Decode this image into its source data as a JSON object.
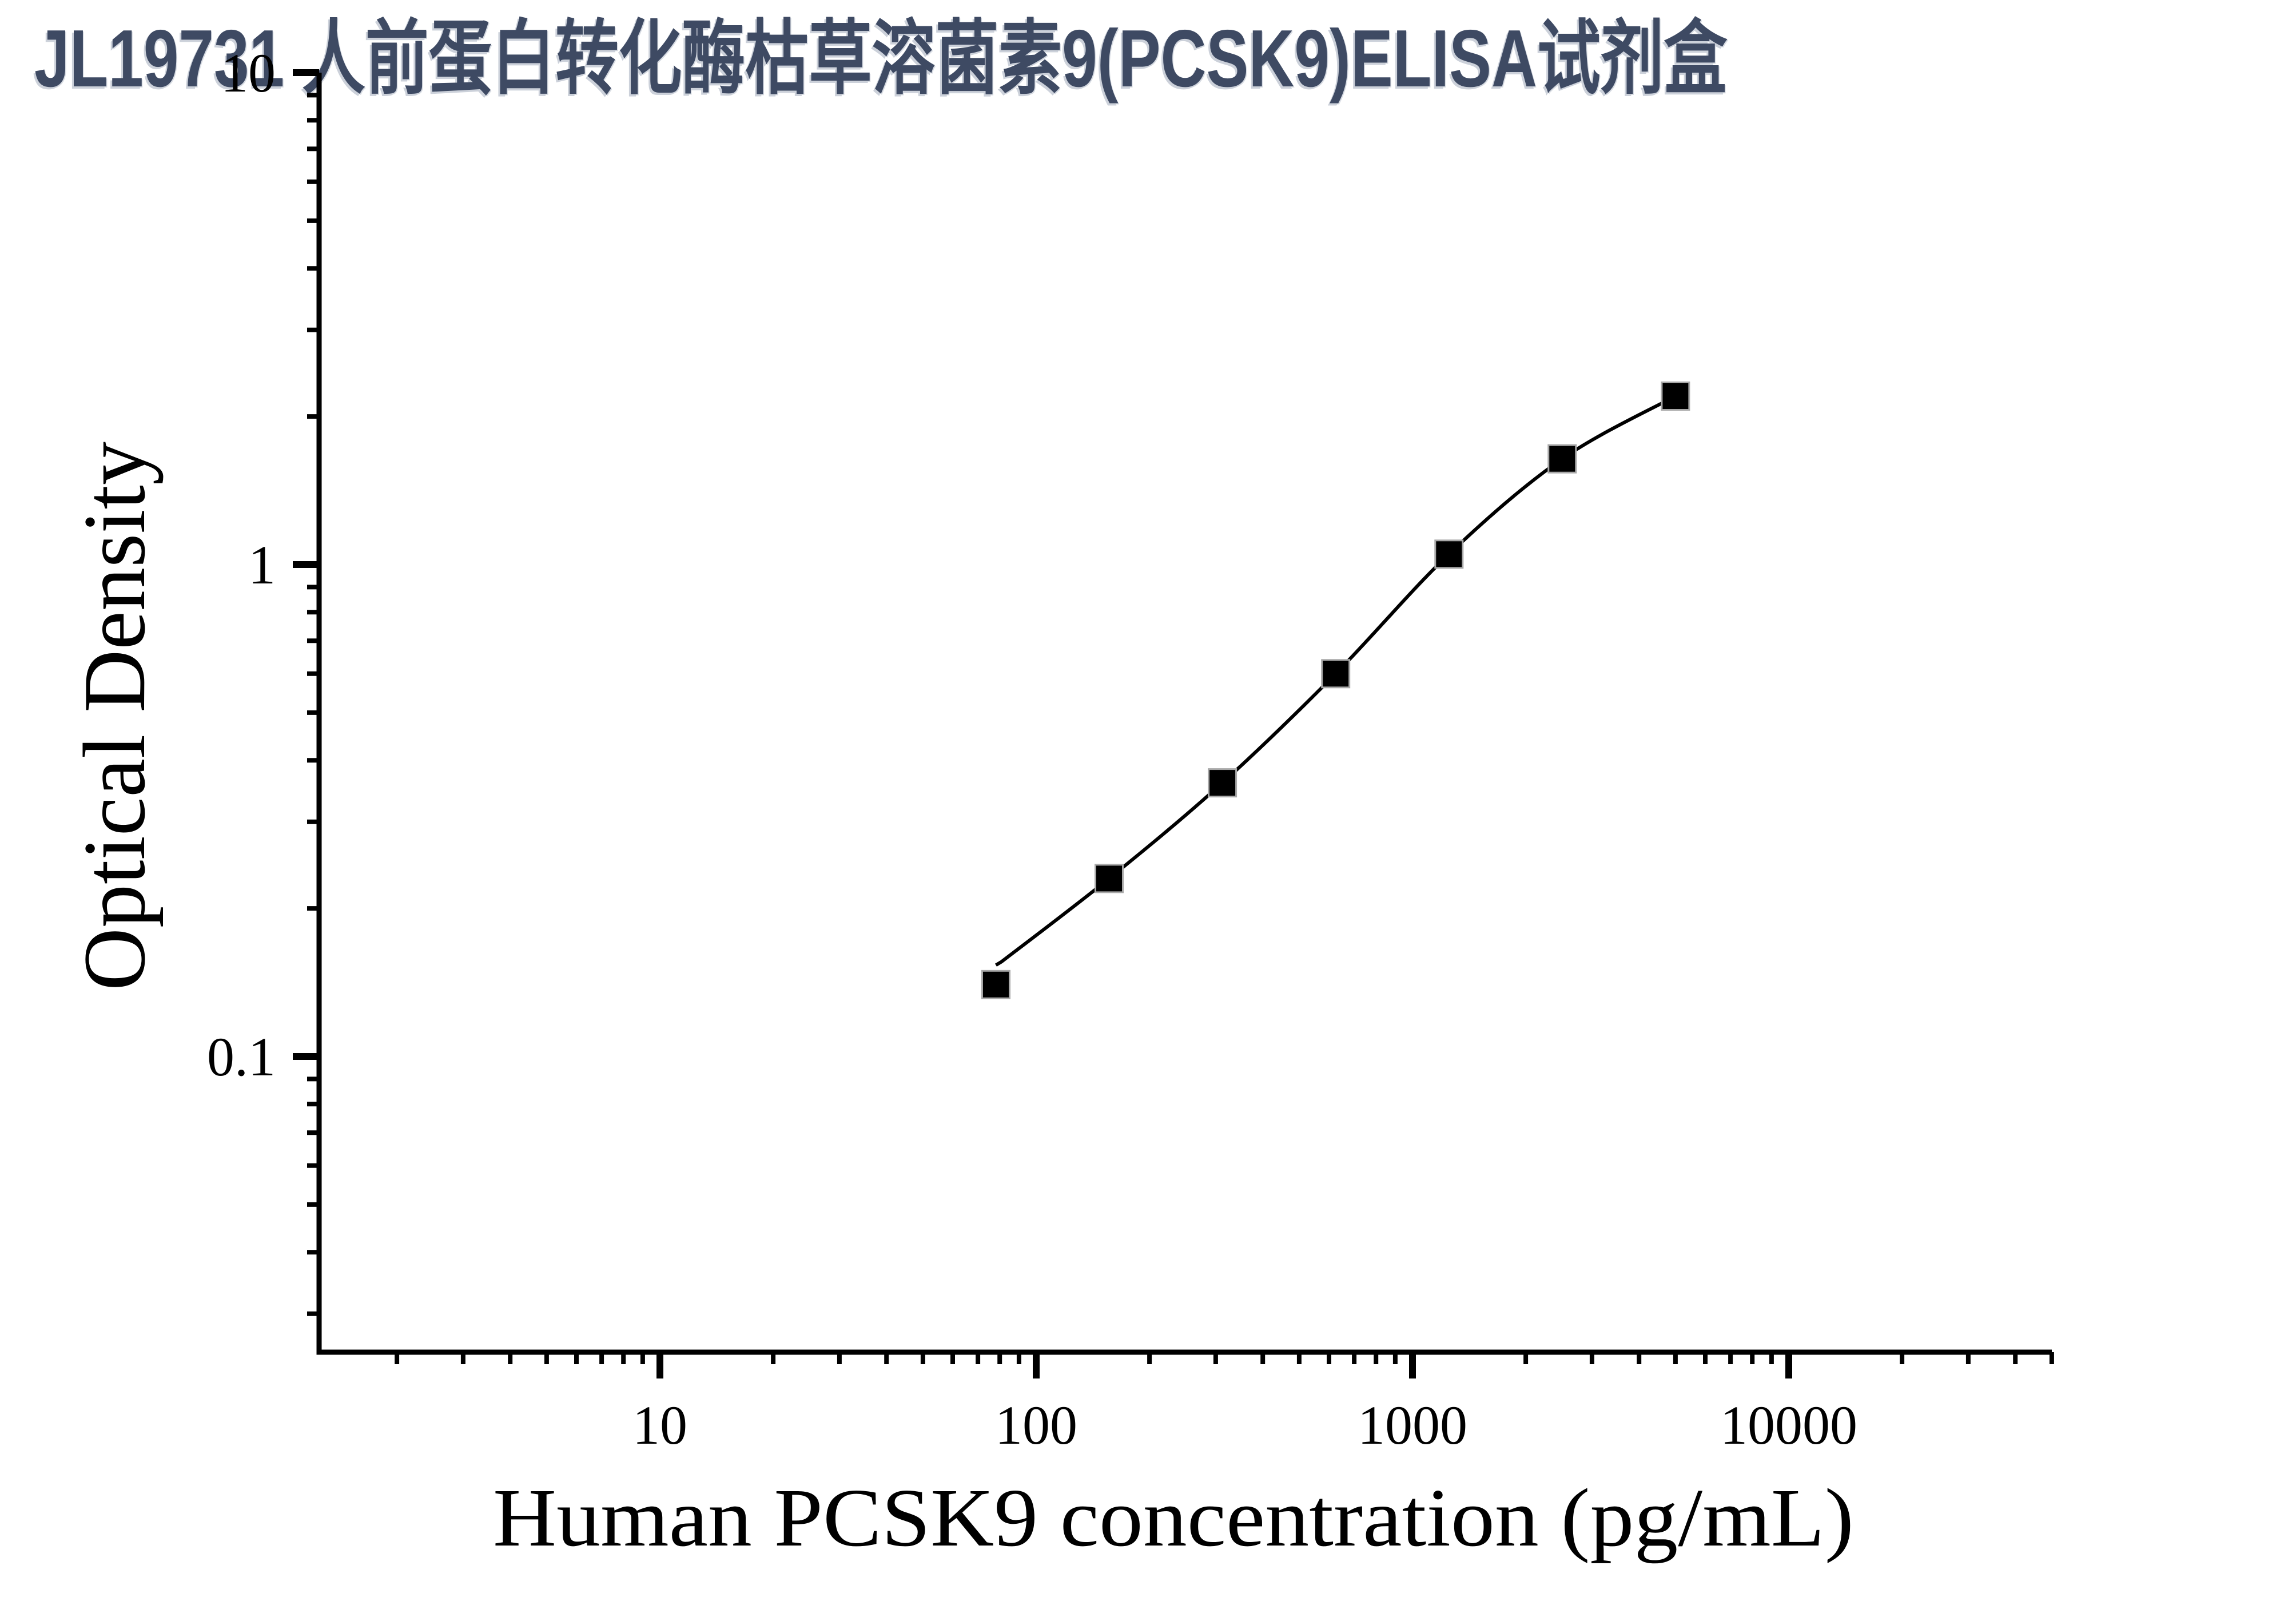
{
  "styles": {
    "title_color": "#3e4a63",
    "title_shadow_color": "#ccd1da",
    "axis_color": "#000000",
    "marker_color": "#000000",
    "curve_color": "#000000",
    "background_color": "#ffffff"
  },
  "chart_data": {
    "type": "line",
    "title": "JL19731 人前蛋白转化酶枯草溶菌素9(PCSK9)ELISA试剂盒",
    "xlabel": "Human PCSK9 concentration (pg/mL)",
    "ylabel": "Optical Density",
    "x_scale": "log",
    "y_scale": "log",
    "xlim": [
      1.25,
      50000
    ],
    "ylim": [
      0.025,
      10
    ],
    "x_ticks_labeled": [
      10,
      100,
      1000,
      10000
    ],
    "x_tick_labels": [
      "10",
      "100",
      "1000",
      "10000"
    ],
    "y_ticks_labeled": [
      10,
      1,
      0.1
    ],
    "y_tick_labels": [
      "10",
      "1",
      "0.1"
    ],
    "x_minor_tick_range": [
      2,
      50000
    ],
    "y_minor_tick_range": [
      0.03,
      9
    ],
    "grid": false,
    "legend": "none",
    "series": [
      {
        "name": "standard-curve",
        "marker": "filled-square",
        "x": [
          78.125,
          156.25,
          312.5,
          625,
          1250,
          2500,
          5000
        ],
        "y": [
          0.14,
          0.23,
          0.36,
          0.6,
          1.05,
          1.64,
          2.2
        ]
      }
    ]
  }
}
